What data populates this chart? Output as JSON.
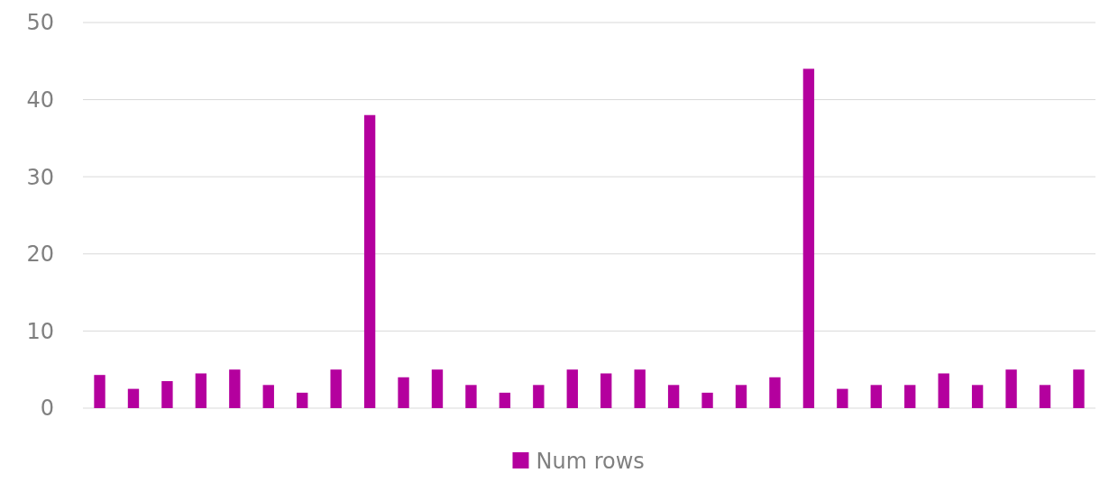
{
  "chart_data": {
    "type": "bar",
    "categories": [
      null,
      null,
      null,
      null,
      null,
      null,
      null,
      null,
      null,
      null,
      null,
      null,
      null,
      null,
      null,
      null,
      null,
      null,
      null,
      null,
      null,
      null,
      null,
      null,
      null,
      null,
      null,
      null,
      null,
      null
    ],
    "series": [
      {
        "name": "Num rows",
        "color": "#b4009e",
        "values": [
          4.3,
          2.5,
          3.5,
          4.5,
          5,
          3,
          2,
          5,
          38,
          4,
          5,
          3,
          2,
          3,
          5,
          4.5,
          5,
          3,
          2,
          3,
          4,
          44,
          2.5,
          3,
          3,
          4.5,
          3,
          5,
          3,
          5
        ]
      }
    ],
    "ylim": [
      0,
      50
    ],
    "yticks": [
      0,
      10,
      20,
      30,
      40,
      50
    ],
    "grid": "y",
    "legend": "bottom"
  }
}
